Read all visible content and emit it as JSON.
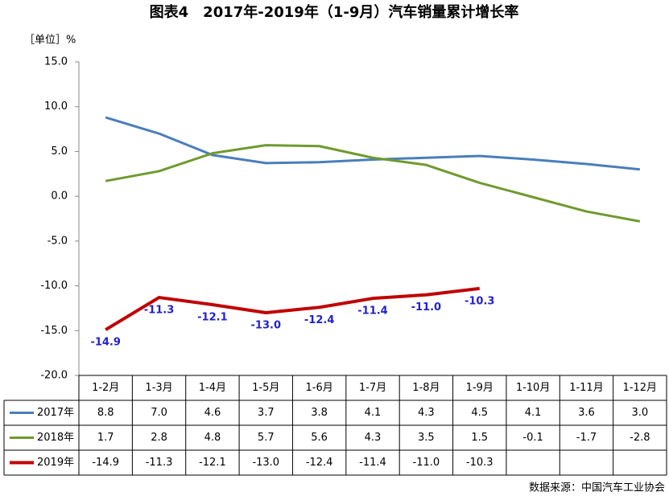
{
  "chart_data": {
    "type": "line",
    "title": "图表4　2017年-2019年（1-9月）汽车销量累计增长率",
    "unit_label": "［单位］%",
    "source": "数据来源：中国汽车工业协会",
    "categories": [
      "1-2月",
      "1-3月",
      "1-4月",
      "1-5月",
      "1-6月",
      "1-7月",
      "1-8月",
      "1-9月",
      "1-10月",
      "1-11月",
      "1-12月"
    ],
    "series": [
      {
        "name": "2017年",
        "color": "#4a7ebb",
        "values": [
          8.8,
          7.0,
          4.6,
          3.7,
          3.8,
          4.1,
          4.3,
          4.5,
          4.1,
          3.6,
          3.0
        ],
        "value_labels": [
          "8.8",
          "7.0",
          "4.6",
          "3.7",
          "3.8",
          "4.1",
          "4.3",
          "4.5",
          "4.1",
          "3.6",
          "3.0"
        ]
      },
      {
        "name": "2018年",
        "color": "#6f9a2e",
        "values": [
          1.7,
          2.8,
          4.8,
          5.7,
          5.6,
          4.3,
          3.5,
          1.5,
          -0.1,
          -1.7,
          -2.8
        ],
        "value_labels": [
          "1.7",
          "2.8",
          "4.8",
          "5.7",
          "5.6",
          "4.3",
          "3.5",
          "1.5",
          "-0.1",
          "-1.7",
          "-2.8"
        ]
      },
      {
        "name": "2019年",
        "color": "#c00000",
        "values": [
          -14.9,
          -11.3,
          -12.1,
          -13.0,
          -12.4,
          -11.4,
          -11.0,
          -10.3,
          null,
          null,
          null
        ],
        "value_labels": [
          "-14.9",
          "-11.3",
          "-12.1",
          "-13.0",
          "-12.4",
          "-11.4",
          "-11.0",
          "-10.3",
          null,
          null,
          null
        ],
        "data_labels": true
      }
    ],
    "ylim": [
      -20,
      15
    ],
    "yticks": [
      {
        "value": -20,
        "label": "-20.0"
      },
      {
        "value": -15,
        "label": "-15.0"
      },
      {
        "value": -10,
        "label": "-10.0"
      },
      {
        "value": -5,
        "label": "-5.0"
      },
      {
        "value": 0,
        "label": "0.0"
      },
      {
        "value": 5,
        "label": "5.0"
      },
      {
        "value": 10,
        "label": "10.0"
      },
      {
        "value": 15,
        "label": "15.0"
      }
    ],
    "grid": false
  }
}
